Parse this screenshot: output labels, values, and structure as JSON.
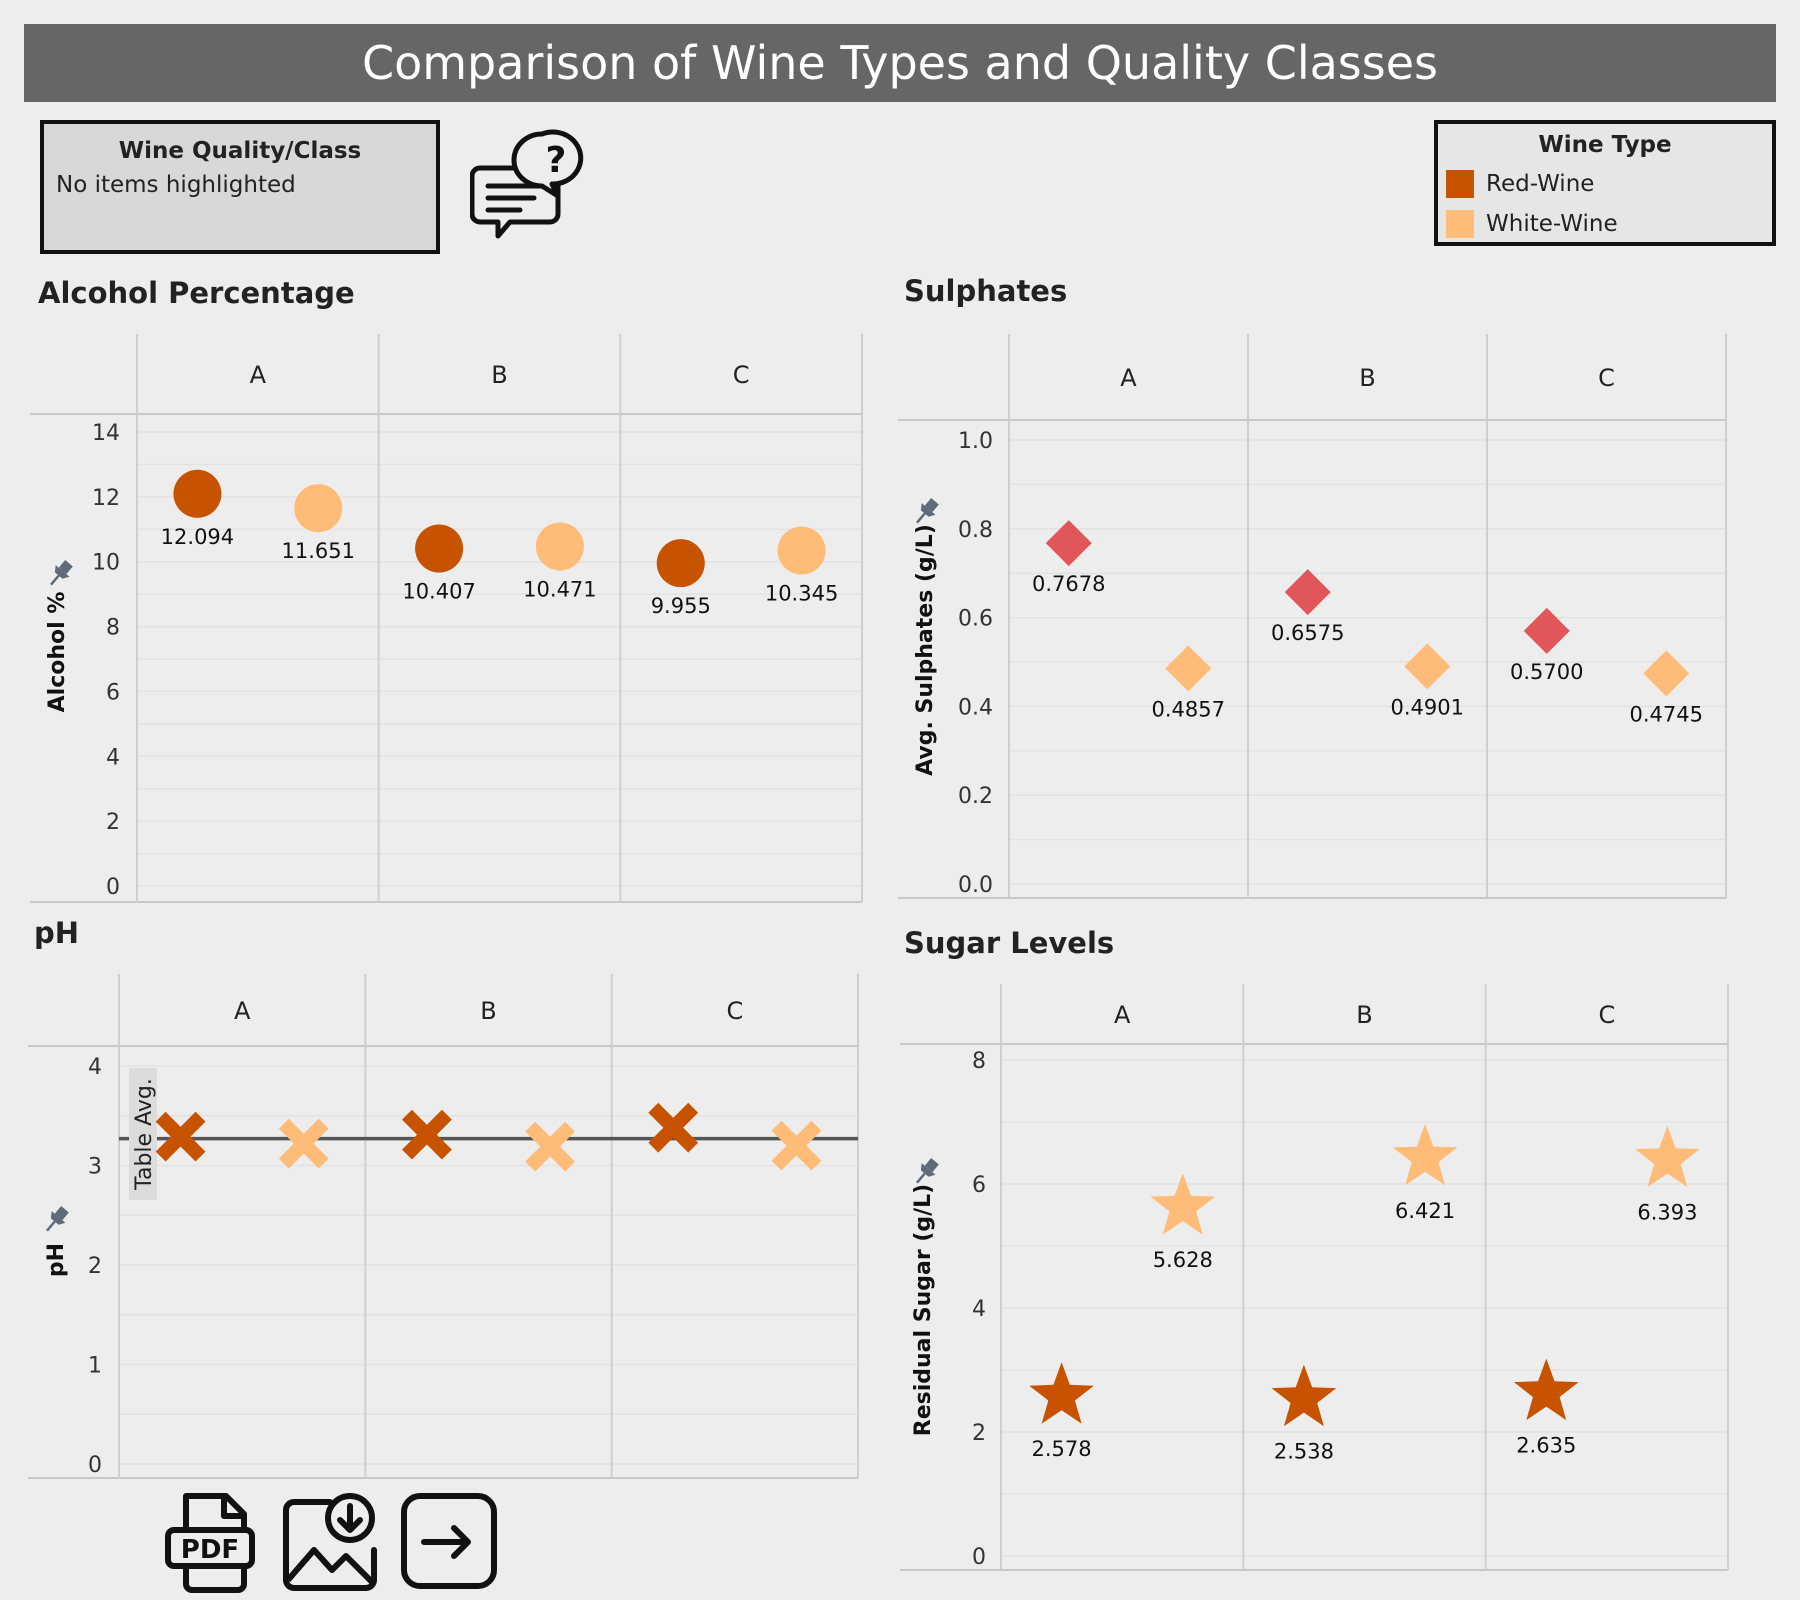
{
  "header": {
    "title": "Comparison of Wine Types and Quality Classes"
  },
  "filter": {
    "title": "Wine Quality/Class",
    "status": "No items highlighted"
  },
  "legend": {
    "title": "Wine Type",
    "items": [
      {
        "label": "Red-Wine",
        "color": "#c75300"
      },
      {
        "label": "White-Wine",
        "color": "#ffbc79"
      }
    ]
  },
  "toolbar": {
    "icons": [
      "pdf-icon",
      "image-download-icon",
      "export-arrow-icon"
    ]
  },
  "chart_data": [
    {
      "type": "scatter",
      "title": "Alcohol Percentage",
      "ylabel": "Alcohol %",
      "categories": [
        "A",
        "B",
        "C"
      ],
      "ylim": [
        0,
        14
      ],
      "yticks": [
        0,
        2,
        4,
        6,
        8,
        10,
        12,
        14
      ],
      "marker": "circle",
      "grid": true,
      "series": [
        {
          "name": "Red-Wine",
          "color": "#c75300",
          "values": [
            12.094,
            10.407,
            9.955
          ],
          "labels": [
            "12.094",
            "10.407",
            "9.955"
          ]
        },
        {
          "name": "White-Wine",
          "color": "#ffbc79",
          "values": [
            11.651,
            10.471,
            10.345
          ],
          "labels": [
            "11.651",
            "10.471",
            "10.345"
          ]
        }
      ]
    },
    {
      "type": "scatter",
      "title": "Sulphates",
      "ylabel": "Avg. Sulphates (g/L)",
      "categories": [
        "A",
        "B",
        "C"
      ],
      "ylim": [
        0,
        1
      ],
      "yticks": [
        "0.0",
        "0.2",
        "0.4",
        "0.6",
        "0.8",
        "1.0"
      ],
      "marker": "diamond",
      "grid": true,
      "series": [
        {
          "name": "Red-Wine",
          "color": "#e15759",
          "values": [
            0.7678,
            0.6575,
            0.57
          ],
          "labels": [
            "0.7678",
            "0.6575",
            "0.5700"
          ]
        },
        {
          "name": "White-Wine",
          "color": "#ffbc79",
          "values": [
            0.4857,
            0.4901,
            0.4745
          ],
          "labels": [
            "0.4857",
            "0.4901",
            "0.4745"
          ]
        }
      ]
    },
    {
      "type": "scatter",
      "title": "pH",
      "ylabel": "pH",
      "categories": [
        "A",
        "B",
        "C"
      ],
      "ylim": [
        0,
        4
      ],
      "yticks": [
        0,
        1,
        2,
        3,
        4
      ],
      "marker": "x",
      "grid": true,
      "reference_line": {
        "label": "Table Avg.",
        "value": 3.27
      },
      "series": [
        {
          "name": "Red-Wine",
          "color": "#c75300",
          "values": [
            3.29,
            3.31,
            3.38
          ]
        },
        {
          "name": "White-Wine",
          "color": "#ffbc79",
          "values": [
            3.22,
            3.19,
            3.2
          ]
        }
      ]
    },
    {
      "type": "scatter",
      "title": "Sugar Levels",
      "ylabel": "Residual Sugar (g/L)",
      "categories": [
        "A",
        "B",
        "C"
      ],
      "ylim": [
        0,
        8
      ],
      "yticks": [
        0,
        2,
        4,
        6,
        8
      ],
      "marker": "star",
      "grid": true,
      "series": [
        {
          "name": "Red-Wine",
          "color": "#c75300",
          "values": [
            2.578,
            2.538,
            2.635
          ],
          "labels": [
            "2.578",
            "2.538",
            "2.635"
          ]
        },
        {
          "name": "White-Wine",
          "color": "#ffbc79",
          "values": [
            5.628,
            6.421,
            6.393
          ],
          "labels": [
            "5.628",
            "6.421",
            "6.393"
          ]
        }
      ]
    }
  ]
}
